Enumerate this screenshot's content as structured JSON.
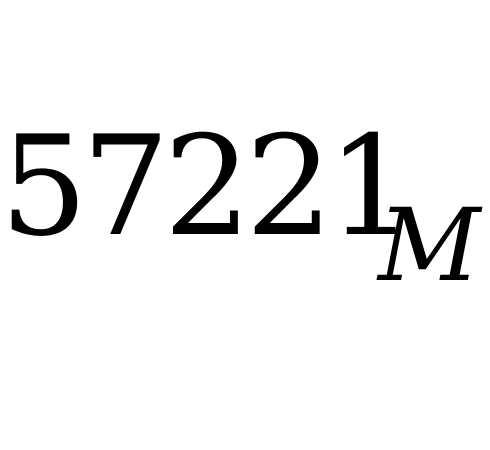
{
  "expression": {
    "digits": "57221",
    "subscript": "M"
  }
}
